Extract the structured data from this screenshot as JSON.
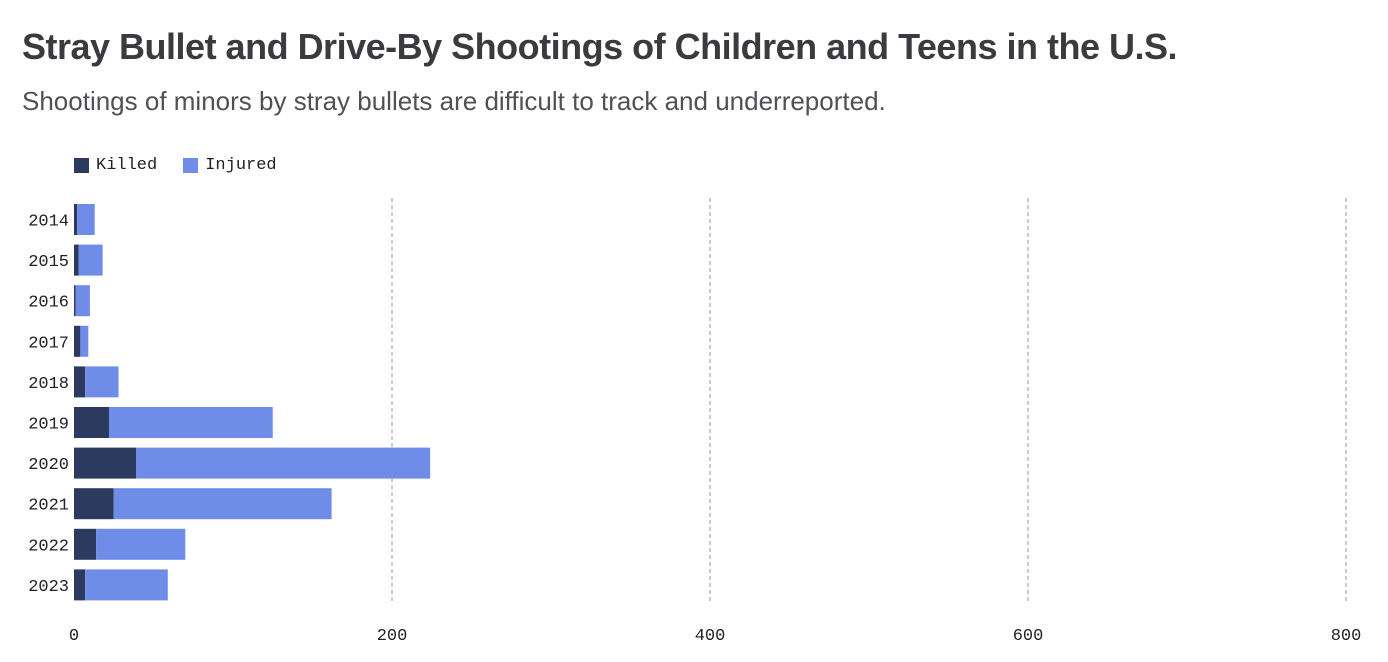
{
  "title": "Stray Bullet and Drive-By Shootings of Children and Teens in the U.S.",
  "subtitle": "Shootings of minors by stray bullets are difficult to track and underreported.",
  "colors": {
    "killed": "#2b3a5e",
    "injured": "#6f8de8",
    "grid": "#999999",
    "text": "#222222"
  },
  "chart_data": {
    "type": "bar",
    "orientation": "horizontal",
    "stacked": true,
    "categories": [
      "2014",
      "2015",
      "2016",
      "2017",
      "2018",
      "2019",
      "2020",
      "2021",
      "2022",
      "2023"
    ],
    "series": [
      {
        "name": "Killed",
        "values": [
          2,
          3,
          1,
          4,
          7,
          22,
          39,
          25,
          14,
          7
        ]
      },
      {
        "name": "Injured",
        "values": [
          11,
          15,
          9,
          5,
          21,
          103,
          185,
          137,
          56,
          52
        ]
      }
    ],
    "xlim": [
      0,
      800
    ],
    "xticks": [
      "0",
      "200",
      "400",
      "600",
      "800"
    ],
    "grid": "vertical-dashed",
    "legend_position": "top-left"
  }
}
